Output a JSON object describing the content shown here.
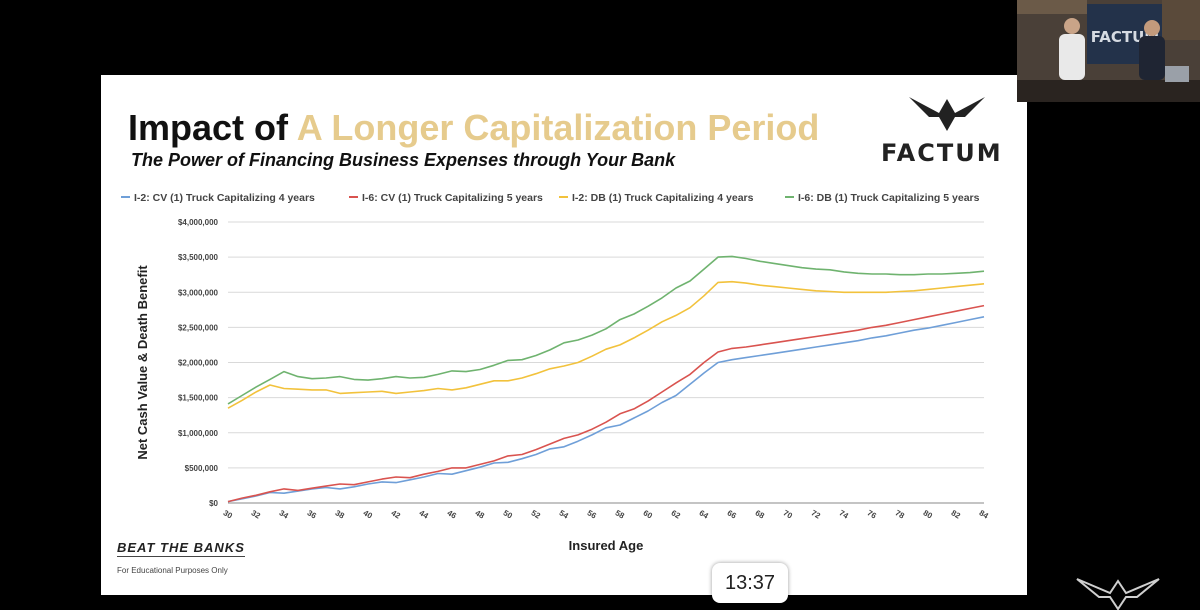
{
  "slide": {
    "title_prefix": "Impact of",
    "title_accent": "A Longer Capitalization Period",
    "subtitle": "The Power of Financing Business Expenses through Your Bank",
    "logo_text": "FACTUM",
    "footer_brand": "BEAT THE BANKS",
    "footer_note": "For Educational Purposes Only"
  },
  "video": {
    "timestamp": "13:37",
    "thumbnail_text": "FACTUM"
  },
  "colors": {
    "accent": "#e6cb8d",
    "cv4": "#6f9fd8",
    "cv5": "#d9534f",
    "db4": "#f2c23c",
    "db5": "#6fb36f"
  },
  "chart_data": {
    "type": "line",
    "title": "",
    "xlabel": "Insured Age",
    "ylabel": "Net Cash Value & Death Benefit",
    "x": [
      30,
      31,
      32,
      33,
      34,
      35,
      36,
      37,
      38,
      39,
      40,
      41,
      42,
      43,
      44,
      45,
      46,
      47,
      48,
      49,
      50,
      51,
      52,
      53,
      54,
      55,
      56,
      57,
      58,
      59,
      60,
      61,
      62,
      63,
      64,
      65,
      66,
      67,
      68,
      69,
      70,
      71,
      72,
      73,
      74,
      75,
      76,
      77,
      78,
      79,
      80,
      81,
      82,
      83,
      84
    ],
    "xlim": [
      30,
      84
    ],
    "ylim": [
      0,
      4000000
    ],
    "x_ticks": [
      "30",
      "32",
      "34",
      "36",
      "38",
      "40",
      "42",
      "44",
      "46",
      "48",
      "50",
      "52",
      "54",
      "56",
      "58",
      "60",
      "62",
      "64",
      "66",
      "68",
      "70",
      "72",
      "74",
      "76",
      "78",
      "80",
      "82",
      "84"
    ],
    "y_ticks": [
      "$0",
      "$500,000",
      "$1,000,000",
      "$1,500,000",
      "$2,000,000",
      "$2,500,000",
      "$3,000,000",
      "$3,500,000",
      "$4,000,000"
    ],
    "grid": true,
    "legend_position": "top",
    "series": [
      {
        "name": "I-2: CV (1) Truck Capitalizing 4 years",
        "color": "#6f9fd8",
        "values": [
          20000,
          60000,
          100000,
          150000,
          140000,
          170000,
          200000,
          220000,
          200000,
          230000,
          270000,
          300000,
          290000,
          330000,
          370000,
          420000,
          410000,
          460000,
          510000,
          570000,
          580000,
          630000,
          690000,
          770000,
          800000,
          880000,
          970000,
          1070000,
          1110000,
          1210000,
          1310000,
          1430000,
          1530000,
          1690000,
          1850000,
          2000000,
          2040000,
          2070000,
          2100000,
          2130000,
          2160000,
          2190000,
          2220000,
          2250000,
          2280000,
          2310000,
          2350000,
          2380000,
          2420000,
          2460000,
          2490000,
          2530000,
          2570000,
          2610000,
          2650000
        ]
      },
      {
        "name": "I-6: CV (1) Truck Capitalizing 5 years",
        "color": "#d9534f",
        "values": [
          20000,
          70000,
          110000,
          160000,
          200000,
          180000,
          210000,
          240000,
          270000,
          260000,
          300000,
          340000,
          370000,
          360000,
          410000,
          450000,
          500000,
          500000,
          550000,
          600000,
          670000,
          690000,
          760000,
          840000,
          920000,
          970000,
          1050000,
          1150000,
          1270000,
          1340000,
          1450000,
          1580000,
          1710000,
          1830000,
          2000000,
          2150000,
          2200000,
          2220000,
          2250000,
          2280000,
          2310000,
          2340000,
          2370000,
          2400000,
          2430000,
          2460000,
          2500000,
          2530000,
          2570000,
          2610000,
          2650000,
          2690000,
          2730000,
          2770000,
          2810000
        ]
      },
      {
        "name": "I-2: DB (1) Truck Capitalizing 4 years",
        "color": "#f2c23c",
        "values": [
          1350000,
          1460000,
          1580000,
          1680000,
          1630000,
          1620000,
          1610000,
          1610000,
          1560000,
          1570000,
          1580000,
          1590000,
          1560000,
          1580000,
          1600000,
          1630000,
          1610000,
          1640000,
          1690000,
          1740000,
          1740000,
          1780000,
          1840000,
          1910000,
          1950000,
          2000000,
          2090000,
          2190000,
          2250000,
          2350000,
          2460000,
          2580000,
          2670000,
          2780000,
          2950000,
          3140000,
          3150000,
          3130000,
          3100000,
          3080000,
          3060000,
          3040000,
          3020000,
          3010000,
          3000000,
          3000000,
          3000000,
          3000000,
          3010000,
          3020000,
          3040000,
          3060000,
          3080000,
          3100000,
          3120000
        ]
      },
      {
        "name": "I-6: DB (1) Truck Capitalizing 5 years",
        "color": "#6fb36f",
        "values": [
          1410000,
          1530000,
          1650000,
          1760000,
          1870000,
          1800000,
          1770000,
          1780000,
          1800000,
          1760000,
          1750000,
          1770000,
          1800000,
          1780000,
          1790000,
          1830000,
          1880000,
          1870000,
          1900000,
          1960000,
          2030000,
          2040000,
          2100000,
          2180000,
          2280000,
          2320000,
          2390000,
          2480000,
          2610000,
          2690000,
          2800000,
          2920000,
          3060000,
          3160000,
          3330000,
          3500000,
          3510000,
          3480000,
          3440000,
          3410000,
          3380000,
          3350000,
          3330000,
          3320000,
          3290000,
          3270000,
          3260000,
          3260000,
          3250000,
          3250000,
          3260000,
          3260000,
          3270000,
          3280000,
          3300000
        ]
      }
    ]
  }
}
